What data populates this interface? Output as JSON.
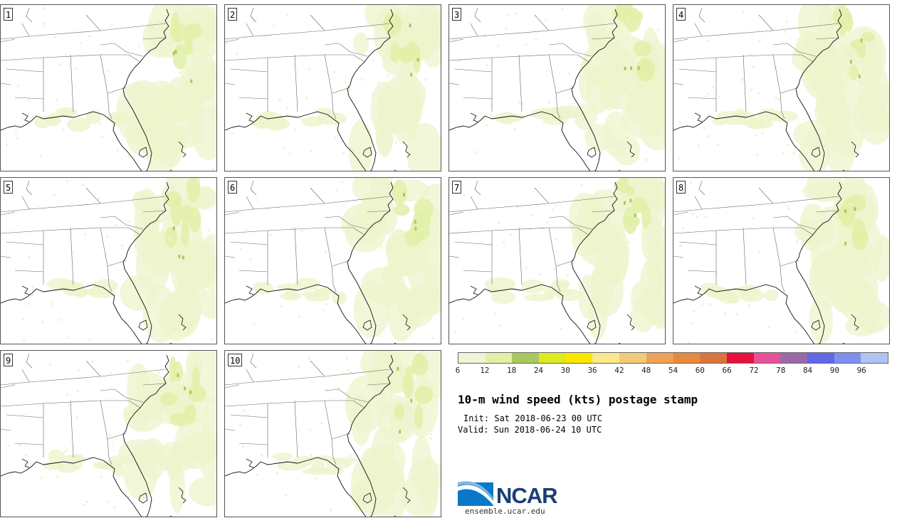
{
  "panels": [
    {
      "label": "1"
    },
    {
      "label": "2"
    },
    {
      "label": "3"
    },
    {
      "label": "4"
    },
    {
      "label": "5"
    },
    {
      "label": "6"
    },
    {
      "label": "7"
    },
    {
      "label": "8"
    },
    {
      "label": "9"
    },
    {
      "label": "10"
    }
  ],
  "colorbar": {
    "colors": [
      "#f0f5d8",
      "#e2f0a8",
      "#a8c860",
      "#dcea1e",
      "#fae800",
      "#fbe88a",
      "#f3cb78",
      "#eea258",
      "#e8883c",
      "#d8743c",
      "#e8103c",
      "#e85098",
      "#9a6aa8",
      "#6068e8",
      "#7c90f0",
      "#b0c4f4"
    ],
    "ticks": [
      "6",
      "12",
      "18",
      "24",
      "30",
      "36",
      "42",
      "48",
      "54",
      "60",
      "66",
      "72",
      "78",
      "84",
      "90",
      "96"
    ]
  },
  "title": "10-m wind speed (kts) postage stamp",
  "init": "Init: Sat 2018-06-23 00 UTC",
  "valid": "Valid: Sun 2018-06-24 10 UTC",
  "logo": {
    "name": "NCAR",
    "url": "ensemble.ucar.edu",
    "brand_color": "#1b3e73",
    "swoosh_color": "#0a78c8"
  }
}
